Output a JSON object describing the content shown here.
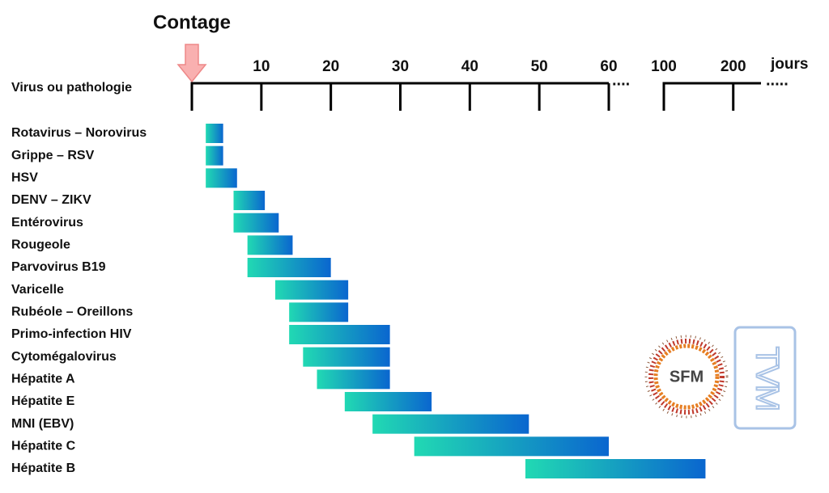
{
  "chart_data": {
    "type": "gantt",
    "annotation": "Contage",
    "y_label": "Virus ou pathologie",
    "x_label": "jours",
    "categories": [
      "Rotavirus – Norovirus",
      "Grippe – RSV",
      "HSV",
      "DENV – ZIKV",
      "Entérovirus",
      "Rougeole",
      "Parvovirus B19",
      "Varicelle",
      "Rubéole – Oreillons",
      "Primo-infection HIV",
      "Cytomégalovirus",
      "Hépatite A",
      "Hépatite E",
      "MNI (EBV)",
      "Hépatite C",
      "Hépatite B"
    ],
    "start": [
      2,
      2,
      2,
      6,
      6,
      8,
      8,
      12,
      14,
      14,
      16,
      18,
      22,
      26,
      32,
      48
    ],
    "end": [
      4.5,
      4.5,
      6.5,
      10.5,
      12.5,
      14.5,
      20,
      22.5,
      22.5,
      28.5,
      28.5,
      28.5,
      34.5,
      48.5,
      60,
      160
    ],
    "colors": [
      "#21d9b3",
      "#0a66cf"
    ],
    "axis_segments": [
      {
        "xlim": [
          0,
          60
        ],
        "xticks": [
          10,
          20,
          30,
          40,
          50,
          60
        ]
      },
      {
        "xlim": [
          100,
          240
        ],
        "xticks": [
          100,
          200
        ]
      }
    ],
    "logos": [
      "SFM",
      "TVM"
    ]
  }
}
